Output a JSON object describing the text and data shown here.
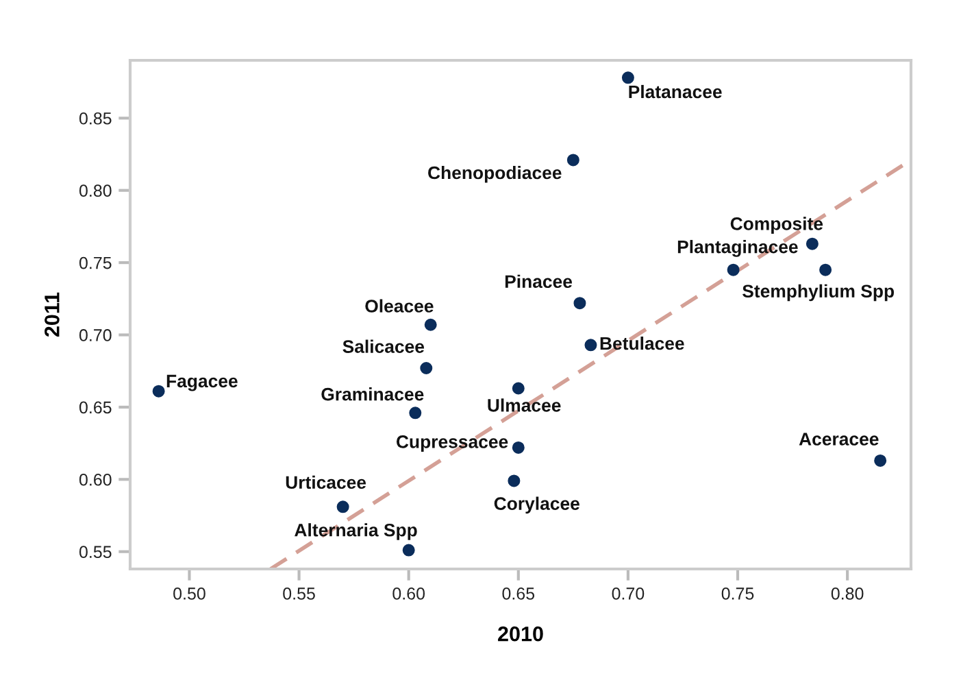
{
  "chart_data": {
    "type": "scatter",
    "xlabel": "2010",
    "ylabel": "2011",
    "xlim": [
      0.473,
      0.829
    ],
    "ylim": [
      0.538,
      0.89
    ],
    "xticks": [
      {
        "value": 0.5,
        "label": "0.50"
      },
      {
        "value": 0.55,
        "label": "0.55"
      },
      {
        "value": 0.6,
        "label": "0.60"
      },
      {
        "value": 0.65,
        "label": "0.65"
      },
      {
        "value": 0.7,
        "label": "0.70"
      },
      {
        "value": 0.75,
        "label": "0.75"
      },
      {
        "value": 0.8,
        "label": "0.80"
      }
    ],
    "yticks": [
      {
        "value": 0.55,
        "label": "0.55"
      },
      {
        "value": 0.6,
        "label": "0.60"
      },
      {
        "value": 0.65,
        "label": "0.65"
      },
      {
        "value": 0.7,
        "label": "0.70"
      },
      {
        "value": 0.75,
        "label": "0.75"
      },
      {
        "value": 0.8,
        "label": "0.80"
      },
      {
        "value": 0.85,
        "label": "0.85"
      }
    ],
    "grid": false,
    "series": [
      {
        "marker": "circle",
        "color": "#0b2d5b",
        "x": [
          0.7,
          0.675,
          0.784,
          0.748,
          0.79,
          0.678,
          0.683,
          0.61,
          0.608,
          0.486,
          0.603,
          0.65,
          0.65,
          0.648,
          0.815,
          0.57,
          0.6
        ],
        "values": [
          0.878,
          0.821,
          0.763,
          0.745,
          0.745,
          0.722,
          0.693,
          0.707,
          0.677,
          0.661,
          0.646,
          0.663,
          0.622,
          0.599,
          0.613,
          0.581,
          0.551
        ]
      },
      {
        "type": "line",
        "marker": "none",
        "color": "#d4a096",
        "line_style": "dashed",
        "x": [
          0.537,
          0.829
        ],
        "values": [
          0.538,
          0.821
        ]
      }
    ],
    "annotations": [
      {
        "text": "Platanacee",
        "x": 0.7,
        "y": 0.878
      },
      {
        "text": "Chenopodiacee",
        "x": 0.675,
        "y": 0.821
      },
      {
        "text": "Composite",
        "x": 0.784,
        "y": 0.763
      },
      {
        "text": "Plantaginacee",
        "x": 0.748,
        "y": 0.745
      },
      {
        "text": "Stemphylium Spp",
        "x": 0.79,
        "y": 0.745
      },
      {
        "text": "Pinacee",
        "x": 0.678,
        "y": 0.722
      },
      {
        "text": "Betulacee",
        "x": 0.683,
        "y": 0.693
      },
      {
        "text": "Oleacee",
        "x": 0.61,
        "y": 0.707
      },
      {
        "text": "Salicacee",
        "x": 0.608,
        "y": 0.677
      },
      {
        "text": "Fagacee",
        "x": 0.486,
        "y": 0.661
      },
      {
        "text": "Graminacee",
        "x": 0.603,
        "y": 0.646
      },
      {
        "text": "Ulmacee",
        "x": 0.65,
        "y": 0.663
      },
      {
        "text": "Cupressacee",
        "x": 0.65,
        "y": 0.622
      },
      {
        "text": "Corylacee",
        "x": 0.648,
        "y": 0.599
      },
      {
        "text": "Aceracee",
        "x": 0.815,
        "y": 0.613
      },
      {
        "text": "Urticacee",
        "x": 0.57,
        "y": 0.581
      },
      {
        "text": "Alternaria Spp",
        "x": 0.6,
        "y": 0.551
      }
    ]
  }
}
